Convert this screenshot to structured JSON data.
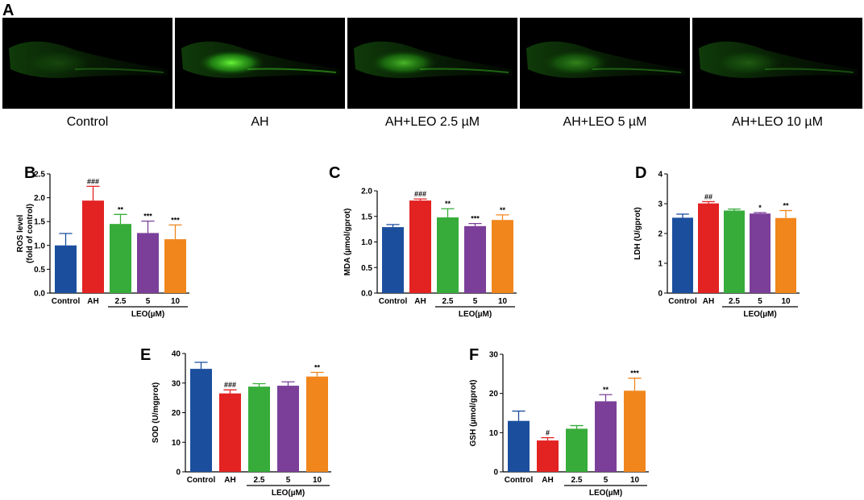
{
  "panel_a": {
    "letter": "A",
    "images": [
      {
        "label": "Control",
        "glow": 0.15
      },
      {
        "label": "AH",
        "glow": 1.0
      },
      {
        "label": "AH+LEO 2.5 µM",
        "glow": 0.7
      },
      {
        "label": "AH+LEO 5 µM",
        "glow": 0.45
      },
      {
        "label": "AH+LEO 10 µM",
        "glow": 0.25
      }
    ]
  },
  "chart_data": [
    {
      "panel": "B",
      "type": "bar",
      "categories": [
        "Control",
        "AH",
        "2.5",
        "5",
        "10"
      ],
      "values": [
        1.0,
        1.94,
        1.45,
        1.26,
        1.13
      ],
      "errors": [
        0.25,
        0.3,
        0.2,
        0.25,
        0.3
      ],
      "annotations": [
        "",
        "###",
        "**",
        "***",
        "***"
      ],
      "ylabel": "ROS level",
      "ylabel2": "(fold of control)",
      "xgroup_label": "LEO(µM)",
      "ylim": [
        0,
        2.5
      ],
      "yticks": [
        "0.0",
        "0.5",
        "1.0",
        "1.5",
        "2.0",
        "2.5"
      ]
    },
    {
      "panel": "C",
      "type": "bar",
      "categories": [
        "Control",
        "AH",
        "2.5",
        "5",
        "10"
      ],
      "values": [
        1.29,
        1.81,
        1.48,
        1.31,
        1.43
      ],
      "errors": [
        0.05,
        0.03,
        0.17,
        0.05,
        0.1
      ],
      "annotations": [
        "",
        "###",
        "**",
        "***",
        "**"
      ],
      "ylabel": "MDA (µmol/gprot)",
      "ylabel2": "",
      "xgroup_label": "LEO(µM)",
      "ylim": [
        0,
        2.0
      ],
      "yticks": [
        "0.0",
        "0.5",
        "1.0",
        "1.5",
        "2.0"
      ]
    },
    {
      "panel": "D",
      "type": "bar",
      "categories": [
        "Control",
        "AH",
        "2.5",
        "5",
        "10"
      ],
      "values": [
        2.53,
        3.01,
        2.77,
        2.67,
        2.52
      ],
      "errors": [
        0.12,
        0.06,
        0.05,
        0.03,
        0.25
      ],
      "annotations": [
        "",
        "##",
        "",
        "*",
        "**"
      ],
      "ylabel": "LDH (U/gprot)",
      "ylabel2": "",
      "xgroup_label": "LEO(µM)",
      "ylim": [
        0,
        4
      ],
      "yticks": [
        "0",
        "1",
        "2",
        "3",
        "4"
      ]
    },
    {
      "panel": "E",
      "type": "bar",
      "categories": [
        "Control",
        "AH",
        "2.5",
        "5",
        "10"
      ],
      "values": [
        34.8,
        26.5,
        28.8,
        29.1,
        32.2
      ],
      "errors": [
        2.2,
        1.2,
        1.0,
        1.3,
        1.4
      ],
      "annotations": [
        "",
        "###",
        "",
        "",
        "**"
      ],
      "ylabel": "SOD (U/mgprot)",
      "ylabel2": "",
      "xgroup_label": "LEO(µM)",
      "ylim": [
        0,
        40
      ],
      "yticks": [
        "0",
        "10",
        "20",
        "30",
        "40"
      ]
    },
    {
      "panel": "F",
      "type": "bar",
      "categories": [
        "Control",
        "AH",
        "2.5",
        "5",
        "10"
      ],
      "values": [
        13.0,
        8.0,
        11.0,
        18.0,
        20.7
      ],
      "errors": [
        2.5,
        0.7,
        0.8,
        1.7,
        3.2
      ],
      "annotations": [
        "",
        "#",
        "",
        "**",
        "***"
      ],
      "ylabel": "GSH (µmol/gprot)",
      "ylabel2": "",
      "xgroup_label": "LEO(µM)",
      "ylim": [
        0,
        30
      ],
      "yticks": [
        "0",
        "10",
        "20",
        "30"
      ]
    }
  ],
  "colors": [
    "#1b4f9e",
    "#e32222",
    "#37ac3a",
    "#7b3f99",
    "#f0861c"
  ]
}
